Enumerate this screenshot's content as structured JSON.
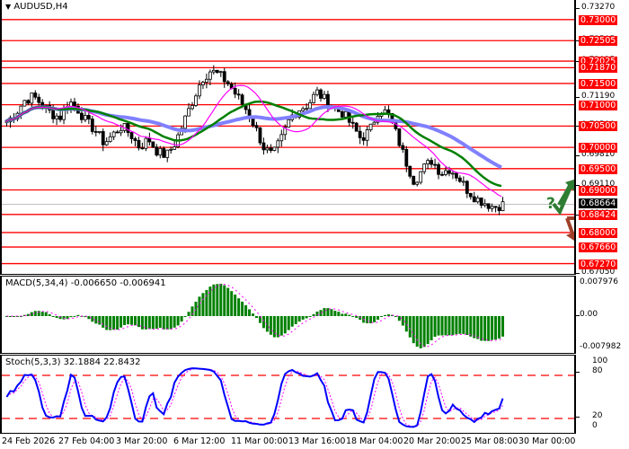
{
  "header": {
    "symbol_title": "AUDUSD,H4",
    "collapse_icon": "triangle-down-icon"
  },
  "colors": {
    "level_line": "#ff0000",
    "ma_fast": "#ff00ff",
    "ma_mid": "#008000",
    "ma_slow": "#8080ff",
    "macd_hist": "#008000",
    "macd_signal": "#ff00ff",
    "stoch_main": "#0000ff",
    "stoch_signal": "#ff00ff",
    "arrow_up": "#2e7d32",
    "arrow_down": "#a0402a",
    "current_price_line": "#c0c0c0"
  },
  "price_axis": {
    "ticks": [
      "0.73270",
      "0.72505",
      "0.72025",
      "0.71190",
      "0.70500",
      "0.69810",
      "0.69110",
      "0.68424",
      "0.67050"
    ],
    "levels": [
      "0.73000",
      "0.72505",
      "0.72025",
      "0.71870",
      "0.71500",
      "0.71000",
      "0.70500",
      "0.70000",
      "0.69500",
      "0.69000",
      "0.68424",
      "0.68000",
      "0.67660",
      "0.67270"
    ],
    "current_price": "0.68664"
  },
  "macd": {
    "label": "MACD(5,34,4) -0.006650 -0.006941",
    "axis": [
      "0.007976",
      "0.00",
      "-0.007982"
    ]
  },
  "stoch": {
    "label": "Stoch(5,3,3) 32.1884 22.8432",
    "axis": [
      "100",
      "80",
      "20",
      "0"
    ]
  },
  "time_axis": [
    "24 Feb 2026",
    "27 Feb 04:00",
    "3 Mar 20:00",
    "6 Mar 12:00",
    "11 Mar 00:00",
    "13 Mar 16:00",
    "18 Mar 04:00",
    "20 Mar 20:00",
    "25 Mar 08:00",
    "30 Mar 00:00"
  ],
  "forecast": {
    "question_mark": "?",
    "up_arrow": "arrow-up-icon",
    "down_arrow": "arrow-down-icon"
  },
  "chart_data": {
    "type": "candlestick",
    "title": "AUDUSD,H4",
    "x_labels": [
      "24 Feb 2026",
      "27 Feb 04:00",
      "3 Mar 20:00",
      "6 Mar 12:00",
      "11 Mar 00:00",
      "13 Mar 16:00",
      "18 Mar 04:00",
      "20 Mar 20:00",
      "25 Mar 08:00",
      "30 Mar 00:00"
    ],
    "ylim": [
      0.6705,
      0.7327
    ],
    "close_approx": [
      0.706,
      0.708,
      0.711,
      0.712,
      0.71,
      0.708,
      0.707,
      0.711,
      0.709,
      0.706,
      0.704,
      0.701,
      0.703,
      0.705,
      0.703,
      0.7,
      0.702,
      0.699,
      0.698,
      0.701,
      0.706,
      0.711,
      0.716,
      0.718,
      0.717,
      0.715,
      0.712,
      0.709,
      0.705,
      0.7,
      0.698,
      0.702,
      0.707,
      0.709,
      0.71,
      0.713,
      0.711,
      0.709,
      0.708,
      0.705,
      0.702,
      0.704,
      0.709,
      0.708,
      0.703,
      0.697,
      0.692,
      0.695,
      0.697,
      0.694,
      0.695,
      0.693,
      0.69,
      0.688,
      0.687,
      0.686,
      0.6866
    ],
    "horizontal_levels": [
      0.73,
      0.72505,
      0.72025,
      0.7187,
      0.715,
      0.71,
      0.705,
      0.7,
      0.695,
      0.69,
      0.68424,
      0.68,
      0.6766,
      0.6727
    ],
    "current_price": 0.68664,
    "indicators": {
      "MACD(5,34,4)": {
        "main": -0.00665,
        "signal": -0.006941,
        "range": [
          -0.007982,
          0.007976
        ]
      },
      "Stoch(5,3,3)": {
        "main": 32.1884,
        "signal": 22.8432,
        "levels": [
          20,
          80
        ]
      }
    }
  }
}
